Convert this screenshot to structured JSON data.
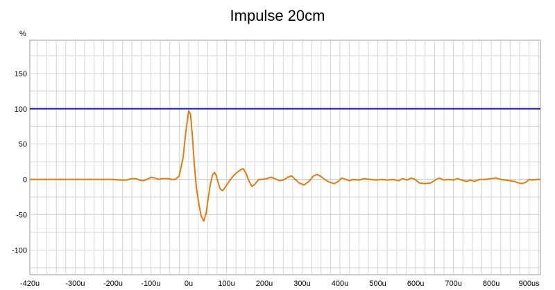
{
  "chart_data": {
    "type": "line",
    "title": "Impulse 20cm",
    "ylabel": "%",
    "xlabel": "",
    "xlim": [
      -420,
      930
    ],
    "ylim": [
      -135,
      197
    ],
    "grid": true,
    "y_ticks": [
      150,
      100,
      50,
      0,
      -50,
      -100
    ],
    "y_tick_labels": [
      "150",
      "100",
      "50",
      "0",
      "-50",
      "-100"
    ],
    "x_ticks": [
      -420,
      -300,
      -200,
      -100,
      0,
      100,
      200,
      300,
      400,
      500,
      600,
      700,
      800,
      900
    ],
    "x_tick_labels": [
      "-420u",
      "-300u",
      "-200u",
      "-100u",
      "0u",
      "100u",
      "200u",
      "300u",
      "400u",
      "500u",
      "600u",
      "700u",
      "800u",
      "900us"
    ],
    "reference_line": {
      "y": 100,
      "color": "#1f1fa0"
    },
    "series": [
      {
        "color": "#e07b10",
        "points": [
          [
            -420,
            0
          ],
          [
            -400,
            0
          ],
          [
            -360,
            0
          ],
          [
            -320,
            0
          ],
          [
            -280,
            0
          ],
          [
            -240,
            0
          ],
          [
            -200,
            0
          ],
          [
            -180,
            -1
          ],
          [
            -165,
            -1
          ],
          [
            -150,
            1
          ],
          [
            -140,
            1
          ],
          [
            -130,
            -1
          ],
          [
            -120,
            -2
          ],
          [
            -110,
            0
          ],
          [
            -100,
            3
          ],
          [
            -90,
            2
          ],
          [
            -80,
            0
          ],
          [
            -70,
            1
          ],
          [
            -55,
            1
          ],
          [
            -45,
            0
          ],
          [
            -35,
            0
          ],
          [
            -25,
            5
          ],
          [
            -15,
            30
          ],
          [
            -7,
            70
          ],
          [
            0,
            97
          ],
          [
            5,
            92
          ],
          [
            10,
            60
          ],
          [
            15,
            20
          ],
          [
            20,
            -10
          ],
          [
            27,
            -35
          ],
          [
            33,
            -52
          ],
          [
            40,
            -59
          ],
          [
            46,
            -48
          ],
          [
            52,
            -25
          ],
          [
            58,
            -5
          ],
          [
            63,
            6
          ],
          [
            68,
            10
          ],
          [
            73,
            5
          ],
          [
            78,
            -5
          ],
          [
            84,
            -14
          ],
          [
            90,
            -16
          ],
          [
            98,
            -10
          ],
          [
            108,
            -2
          ],
          [
            118,
            5
          ],
          [
            128,
            10
          ],
          [
            138,
            14
          ],
          [
            145,
            15
          ],
          [
            152,
            8
          ],
          [
            160,
            -3
          ],
          [
            167,
            -10
          ],
          [
            175,
            -7
          ],
          [
            185,
            0
          ],
          [
            195,
            0
          ],
          [
            205,
            1
          ],
          [
            218,
            3
          ],
          [
            228,
            1
          ],
          [
            240,
            -2
          ],
          [
            250,
            -1
          ],
          [
            262,
            3
          ],
          [
            272,
            5
          ],
          [
            282,
            0
          ],
          [
            292,
            -5
          ],
          [
            305,
            -8
          ],
          [
            318,
            -3
          ],
          [
            330,
            5
          ],
          [
            340,
            7
          ],
          [
            350,
            4
          ],
          [
            362,
            -1
          ],
          [
            372,
            -4
          ],
          [
            385,
            -6
          ],
          [
            395,
            -3
          ],
          [
            405,
            2
          ],
          [
            415,
            0
          ],
          [
            425,
            -2
          ],
          [
            435,
            0
          ],
          [
            450,
            -1
          ],
          [
            465,
            1
          ],
          [
            480,
            0
          ],
          [
            495,
            -1
          ],
          [
            510,
            0
          ],
          [
            525,
            -1
          ],
          [
            540,
            0
          ],
          [
            555,
            -2
          ],
          [
            565,
            1
          ],
          [
            578,
            -1
          ],
          [
            588,
            2
          ],
          [
            598,
            0
          ],
          [
            610,
            -5
          ],
          [
            625,
            -6
          ],
          [
            640,
            -5
          ],
          [
            652,
            -1
          ],
          [
            662,
            2
          ],
          [
            675,
            -1
          ],
          [
            685,
            0
          ],
          [
            700,
            -1
          ],
          [
            710,
            1
          ],
          [
            722,
            -1
          ],
          [
            735,
            -3
          ],
          [
            745,
            -1
          ],
          [
            755,
            -3
          ],
          [
            770,
            0
          ],
          [
            785,
            0
          ],
          [
            800,
            1
          ],
          [
            812,
            2
          ],
          [
            825,
            0
          ],
          [
            838,
            -1
          ],
          [
            850,
            -2
          ],
          [
            862,
            -3
          ],
          [
            872,
            -5
          ],
          [
            882,
            -6
          ],
          [
            892,
            -4
          ],
          [
            900,
            0
          ],
          [
            910,
            -1
          ],
          [
            920,
            0
          ],
          [
            930,
            0
          ]
        ]
      }
    ]
  }
}
